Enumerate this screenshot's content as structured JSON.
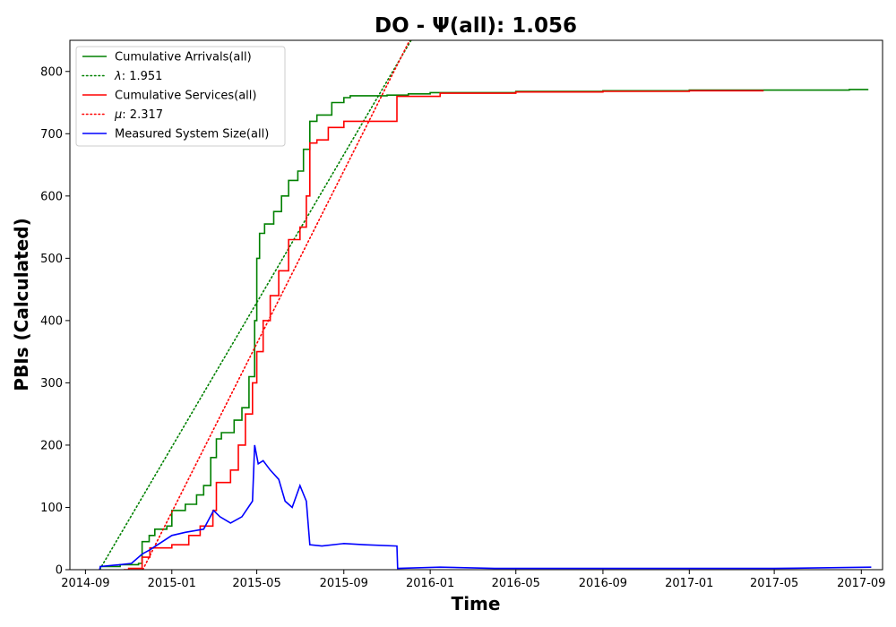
{
  "chart_data": {
    "type": "line",
    "title": "DO -  Ψ(all): 1.056",
    "xlabel": "Time",
    "ylabel": "PBIs (Calculated)",
    "xlim": [
      "2014-08-10",
      "2017-10-01"
    ],
    "ylim": [
      0,
      850
    ],
    "x_ticks": [
      "2014-09",
      "2015-01",
      "2015-05",
      "2015-09",
      "2016-01",
      "2016-05",
      "2016-09",
      "2017-01",
      "2017-05",
      "2017-09"
    ],
    "x_tick_dates": [
      "2014-09-01",
      "2015-01-01",
      "2015-05-01",
      "2015-09-01",
      "2016-01-01",
      "2016-05-01",
      "2016-09-01",
      "2017-01-01",
      "2017-05-01",
      "2017-09-01"
    ],
    "y_ticks": [
      0,
      100,
      200,
      300,
      400,
      500,
      600,
      700,
      800
    ],
    "grid": false,
    "legend_position": "upper-left",
    "series": [
      {
        "name": "Cumulative Arrivals(all)",
        "color": "#008000",
        "style": "solid",
        "step": true,
        "points": [
          [
            "2014-09-21",
            0
          ],
          [
            "2014-09-22",
            5
          ],
          [
            "2014-10-20",
            8
          ],
          [
            "2014-11-15",
            10
          ],
          [
            "2014-11-20",
            45
          ],
          [
            "2014-11-30",
            55
          ],
          [
            "2014-12-08",
            65
          ],
          [
            "2014-12-25",
            70
          ],
          [
            "2015-01-01",
            95
          ],
          [
            "2015-01-20",
            105
          ],
          [
            "2015-02-05",
            120
          ],
          [
            "2015-02-15",
            135
          ],
          [
            "2015-02-25",
            180
          ],
          [
            "2015-03-05",
            210
          ],
          [
            "2015-03-12",
            220
          ],
          [
            "2015-03-30",
            240
          ],
          [
            "2015-04-10",
            260
          ],
          [
            "2015-04-20",
            310
          ],
          [
            "2015-04-28",
            400
          ],
          [
            "2015-05-01",
            500
          ],
          [
            "2015-05-05",
            540
          ],
          [
            "2015-05-12",
            555
          ],
          [
            "2015-05-25",
            575
          ],
          [
            "2015-06-05",
            600
          ],
          [
            "2015-06-15",
            625
          ],
          [
            "2015-06-28",
            640
          ],
          [
            "2015-07-06",
            675
          ],
          [
            "2015-07-15",
            720
          ],
          [
            "2015-07-25",
            730
          ],
          [
            "2015-08-15",
            750
          ],
          [
            "2015-09-01",
            758
          ],
          [
            "2015-09-10",
            761
          ],
          [
            "2015-11-01",
            762
          ],
          [
            "2015-12-01",
            764
          ],
          [
            "2016-01-01",
            766
          ],
          [
            "2016-05-01",
            768
          ],
          [
            "2016-09-01",
            769
          ],
          [
            "2017-01-01",
            770
          ],
          [
            "2017-05-01",
            770
          ],
          [
            "2017-08-15",
            771
          ],
          [
            "2017-09-10",
            772
          ]
        ]
      },
      {
        "name": "λ: 1.951",
        "label_prefix": "λ",
        "label_value": ": 1.951",
        "color": "#008000",
        "style": "dotted",
        "points": [
          [
            "2014-09-21",
            0
          ],
          [
            "2015-12-05",
            850
          ]
        ]
      },
      {
        "name": "Cumulative Services(all)",
        "color": "#ff0000",
        "style": "solid",
        "step": true,
        "points": [
          [
            "2014-10-25",
            0
          ],
          [
            "2014-11-01",
            2
          ],
          [
            "2014-11-20",
            20
          ],
          [
            "2014-12-01",
            35
          ],
          [
            "2015-01-01",
            40
          ],
          [
            "2015-01-25",
            55
          ],
          [
            "2015-02-10",
            70
          ],
          [
            "2015-02-28",
            95
          ],
          [
            "2015-03-05",
            140
          ],
          [
            "2015-03-25",
            160
          ],
          [
            "2015-04-05",
            200
          ],
          [
            "2015-04-15",
            250
          ],
          [
            "2015-04-25",
            300
          ],
          [
            "2015-05-01",
            350
          ],
          [
            "2015-05-10",
            400
          ],
          [
            "2015-05-20",
            440
          ],
          [
            "2015-06-01",
            480
          ],
          [
            "2015-06-15",
            530
          ],
          [
            "2015-07-01",
            550
          ],
          [
            "2015-07-10",
            600
          ],
          [
            "2015-07-15",
            685
          ],
          [
            "2015-07-25",
            690
          ],
          [
            "2015-08-10",
            710
          ],
          [
            "2015-09-01",
            720
          ],
          [
            "2015-11-15",
            760
          ],
          [
            "2016-01-15",
            765
          ],
          [
            "2016-05-01",
            767
          ],
          [
            "2016-09-01",
            768
          ],
          [
            "2017-01-01",
            769
          ],
          [
            "2017-04-15",
            770
          ]
        ]
      },
      {
        "name": "μ: 2.317",
        "label_prefix": "μ",
        "label_value": ": 2.317",
        "color": "#ff0000",
        "style": "dotted",
        "points": [
          [
            "2014-11-21",
            0
          ],
          [
            "2015-12-03",
            850
          ]
        ]
      },
      {
        "name": "Measured System Size(all)",
        "color": "#0000ff",
        "style": "solid",
        "points": [
          [
            "2014-09-21",
            0
          ],
          [
            "2014-09-22",
            5
          ],
          [
            "2014-10-20",
            8
          ],
          [
            "2014-11-05",
            10
          ],
          [
            "2014-11-20",
            25
          ],
          [
            "2014-12-01",
            32
          ],
          [
            "2015-01-01",
            55
          ],
          [
            "2015-01-20",
            60
          ],
          [
            "2015-02-15",
            65
          ],
          [
            "2015-03-01",
            95
          ],
          [
            "2015-03-10",
            85
          ],
          [
            "2015-03-25",
            75
          ],
          [
            "2015-04-10",
            85
          ],
          [
            "2015-04-25",
            110
          ],
          [
            "2015-04-28",
            200
          ],
          [
            "2015-05-03",
            170
          ],
          [
            "2015-05-10",
            175
          ],
          [
            "2015-05-20",
            160
          ],
          [
            "2015-06-01",
            145
          ],
          [
            "2015-06-10",
            110
          ],
          [
            "2015-06-20",
            100
          ],
          [
            "2015-07-01",
            135
          ],
          [
            "2015-07-10",
            110
          ],
          [
            "2015-07-15",
            40
          ],
          [
            "2015-08-01",
            38
          ],
          [
            "2015-09-01",
            42
          ],
          [
            "2015-10-01",
            40
          ],
          [
            "2015-11-15",
            38
          ],
          [
            "2015-11-16",
            2
          ],
          [
            "2016-01-15",
            4
          ],
          [
            "2016-04-01",
            2
          ],
          [
            "2016-06-01",
            2
          ],
          [
            "2016-09-01",
            2
          ],
          [
            "2017-01-01",
            2
          ],
          [
            "2017-05-01",
            2
          ],
          [
            "2017-09-15",
            4
          ]
        ]
      }
    ]
  }
}
